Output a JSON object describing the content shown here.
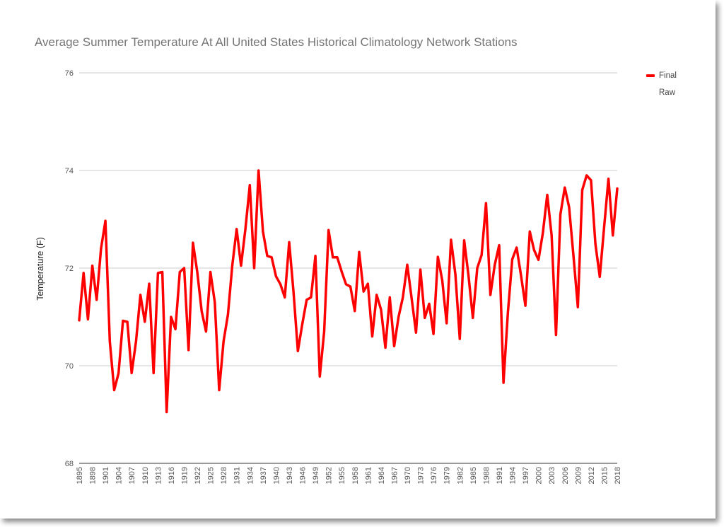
{
  "chart_data": {
    "type": "line",
    "title": "Average Summer Temperature At All United States Historical Climatology Network Stations",
    "ylabel": "Temperature (F)",
    "xlabel": "",
    "ylim": [
      68,
      76
    ],
    "yticks": [
      68,
      70,
      72,
      74,
      76
    ],
    "grid": true,
    "legend_position": "top-right",
    "xtick_labels": [
      "1895",
      "1898",
      "1901",
      "1904",
      "1907",
      "1910",
      "1913",
      "1916",
      "1919",
      "1922",
      "1925",
      "1928",
      "1931",
      "1934",
      "1937",
      "1940",
      "1943",
      "1946",
      "1949",
      "1952",
      "1955",
      "1958",
      "1961",
      "1964",
      "1967",
      "1970",
      "1973",
      "1976",
      "1979",
      "1982",
      "1985",
      "1988",
      "1991",
      "1994",
      "1997",
      "2000",
      "2003",
      "2006",
      "2009",
      "2012",
      "2015",
      "2018"
    ],
    "x_start": 1895,
    "series": [
      {
        "name": "Final",
        "color": "#ff0000",
        "values": [
          70.93,
          71.9,
          70.95,
          72.05,
          71.35,
          72.4,
          72.97,
          70.5,
          69.5,
          69.85,
          70.92,
          70.9,
          69.85,
          70.5,
          71.45,
          70.9,
          71.68,
          69.85,
          71.9,
          71.92,
          69.05,
          71.0,
          70.75,
          71.92,
          72.0,
          70.32,
          72.52,
          71.92,
          71.12,
          70.7,
          71.92,
          71.3,
          69.5,
          70.5,
          71.05,
          72.05,
          72.8,
          72.05,
          72.8,
          73.7,
          72.0,
          74.0,
          72.75,
          72.25,
          72.22,
          71.83,
          71.67,
          71.4,
          72.53,
          71.5,
          70.3,
          70.85,
          71.35,
          71.4,
          72.25,
          69.78,
          70.7,
          72.78,
          72.22,
          72.22,
          71.93,
          71.67,
          71.62,
          71.12,
          72.33,
          71.52,
          71.68,
          70.6,
          71.45,
          71.15,
          70.37,
          71.4,
          70.4,
          71.0,
          71.4,
          72.07,
          71.38,
          70.68,
          71.97,
          70.98,
          71.27,
          70.65,
          72.23,
          71.75,
          70.87,
          72.58,
          71.87,
          70.55,
          72.57,
          71.85,
          70.98,
          72.0,
          72.27,
          73.33,
          71.45,
          72.07,
          72.47,
          69.65,
          71.08,
          72.18,
          72.42,
          71.85,
          71.23,
          72.75,
          72.37,
          72.17,
          72.72,
          73.5,
          72.67,
          70.63,
          73.1,
          73.65,
          73.25,
          72.25,
          71.2,
          73.6,
          73.9,
          73.8,
          72.5,
          71.82,
          72.83,
          73.83,
          72.67,
          73.63
        ]
      },
      {
        "name": "Raw",
        "color": "",
        "values": []
      }
    ]
  }
}
